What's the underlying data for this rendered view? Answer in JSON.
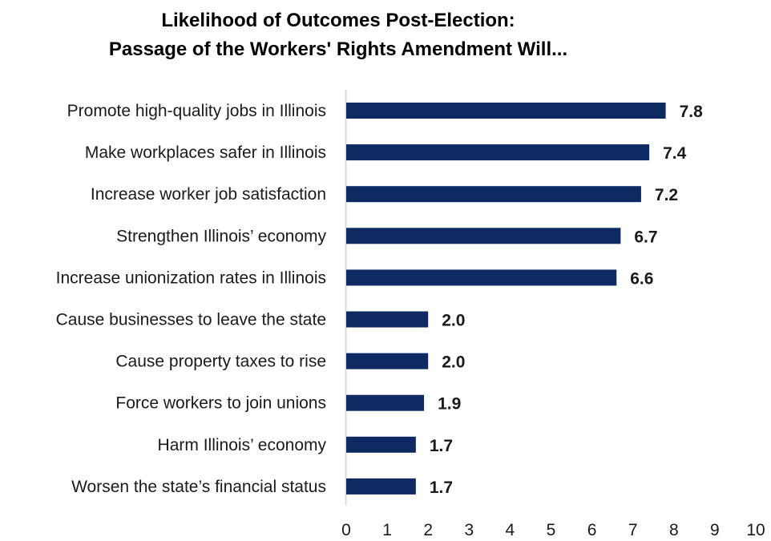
{
  "chart_data": {
    "type": "bar",
    "orientation": "horizontal",
    "title_lines": [
      "Likelihood of Outcomes Post-Election:",
      "Passage of the Workers' Rights Amendment Will..."
    ],
    "categories": [
      "Promote high-quality jobs in Illinois",
      "Make workplaces safer in Illinois",
      "Increase worker job satisfaction",
      "Strengthen Illinois’ economy",
      "Increase unionization rates in Illinois",
      "Cause businesses to leave the state",
      "Cause property taxes to rise",
      "Force workers to join unions",
      "Harm Illinois’ economy",
      "Worsen the state’s financial status"
    ],
    "values": [
      7.8,
      7.4,
      7.2,
      6.7,
      6.6,
      2.0,
      2.0,
      1.9,
      1.7,
      1.7
    ],
    "value_labels": [
      "7.8",
      "7.4",
      "7.2",
      "6.7",
      "6.6",
      "2.0",
      "2.0",
      "1.9",
      "1.7",
      "1.7"
    ],
    "xlim": [
      0,
      10
    ],
    "x_ticks": [
      "0",
      "1",
      "2",
      "3",
      "4",
      "5",
      "6",
      "7",
      "8",
      "9",
      "10"
    ],
    "xlabel": "",
    "ylabel": "",
    "grid": false,
    "legend": "none",
    "bar_color": "#0d2a62",
    "axis_color": "#d9d9d9"
  }
}
